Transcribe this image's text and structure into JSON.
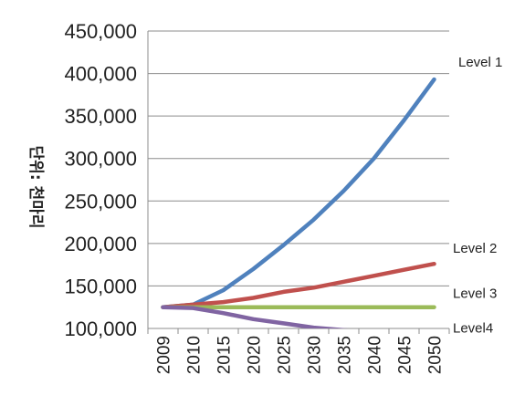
{
  "chart_data": {
    "type": "line",
    "title": "",
    "xlabel": "",
    "ylabel": "단위: 천마리",
    "x": [
      "2009",
      "2010",
      "2015",
      "2020",
      "2025",
      "2030",
      "2035",
      "2040",
      "2045",
      "2050"
    ],
    "ylim": [
      100000,
      450000
    ],
    "yticks": [
      100000,
      150000,
      200000,
      250000,
      300000,
      350000,
      400000,
      450000
    ],
    "ytick_labels": [
      "100,000",
      "150,000",
      "200,000",
      "250,000",
      "300,000",
      "350,000",
      "400,000",
      "450,000"
    ],
    "grid": true,
    "legend": "none",
    "series": [
      {
        "name": "Level 1",
        "color": "#4F81BD",
        "values": [
          125000,
          128000,
          145000,
          170000,
          198000,
          228000,
          262000,
          300000,
          345000,
          393000
        ]
      },
      {
        "name": "Level 2",
        "color": "#C0504D",
        "values": [
          125000,
          128000,
          131000,
          136000,
          143000,
          148000,
          155000,
          162000,
          169000,
          176000
        ]
      },
      {
        "name": "Level 3",
        "color": "#9BBB59",
        "values": [
          125000,
          125000,
          125000,
          125000,
          125000,
          125000,
          125000,
          125000,
          125000,
          125000
        ]
      },
      {
        "name": "Level4",
        "color": "#8064A2",
        "values": [
          125000,
          124000,
          118000,
          111000,
          106000,
          101000,
          98000,
          96000,
          94000,
          92000
        ]
      }
    ]
  }
}
